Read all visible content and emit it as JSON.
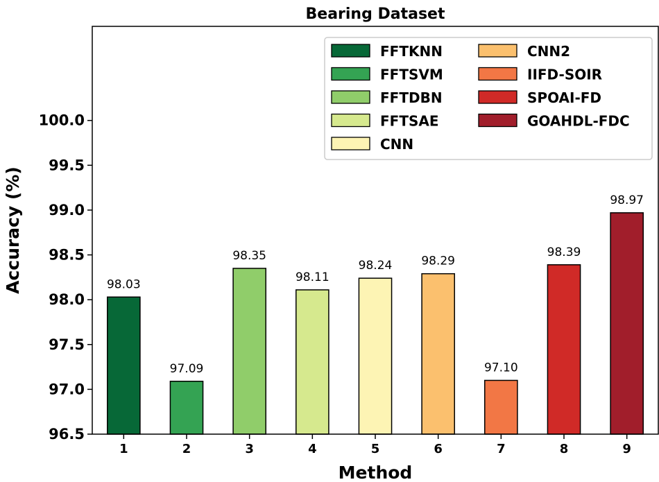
{
  "chart_data": {
    "type": "bar",
    "title": "Bearing Dataset",
    "xlabel": "Method",
    "ylabel": "Accuracy (%)",
    "categories": [
      "1",
      "2",
      "3",
      "4",
      "5",
      "6",
      "7",
      "8",
      "9"
    ],
    "values": [
      98.03,
      97.09,
      98.35,
      98.11,
      98.24,
      98.29,
      97.1,
      98.39,
      98.97
    ],
    "value_labels": [
      "98.03",
      "97.09",
      "98.35",
      "98.11",
      "98.24",
      "98.29",
      "97.10",
      "98.39",
      "98.97"
    ],
    "series_names": [
      "FFTKNN",
      "FFTSVM",
      "FFTDBN",
      "FFTSAE",
      "CNN",
      "CNN2",
      "IIFD-SOIR",
      "SPOAI-FD",
      "GOAHDL-FDC"
    ],
    "colors": [
      "#076837",
      "#34a353",
      "#90cd6a",
      "#d6e98e",
      "#fdf4b4",
      "#fbc06e",
      "#f27745",
      "#d02a27",
      "#a11e2b"
    ],
    "ylim": [
      96.5,
      101.05
    ],
    "yticks": [
      96.5,
      97.0,
      97.5,
      98.0,
      98.5,
      99.0,
      99.5,
      100.0
    ],
    "ytick_labels": [
      "96.5",
      "97.0",
      "97.5",
      "98.0",
      "98.5",
      "99.0",
      "99.5",
      "100.0"
    ],
    "legend_position": "top-right",
    "legend_columns": 2,
    "grid": false
  }
}
